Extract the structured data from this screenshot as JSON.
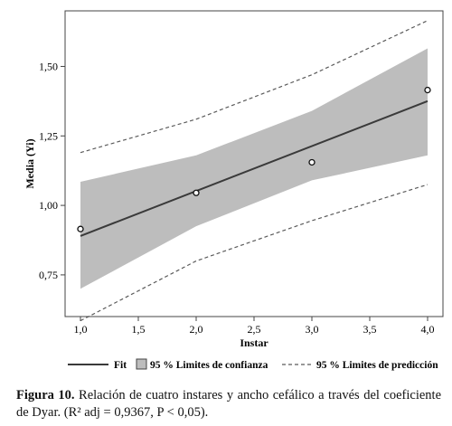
{
  "chart_data": {
    "type": "scatter",
    "title": "",
    "xlabel": "Instar",
    "ylabel": "Media (Yi)",
    "xlim": [
      1.0,
      4.0
    ],
    "ylim": [
      0.6,
      1.7
    ],
    "x_ticks": [
      "1,0",
      "1,5",
      "2,0",
      "2,5",
      "3,0",
      "3,5",
      "4,0"
    ],
    "y_ticks": [
      "0,75",
      "1,00",
      "1,25",
      "1,50"
    ],
    "x_tick_values": [
      1.0,
      1.5,
      2.0,
      2.5,
      3.0,
      3.5,
      4.0
    ],
    "y_tick_values": [
      0.75,
      1.0,
      1.25,
      1.5
    ],
    "grid": false,
    "legend_position": "bottom",
    "points": {
      "x": [
        1,
        2,
        3,
        4
      ],
      "y": [
        0.915,
        1.045,
        1.155,
        1.415
      ]
    },
    "fit": {
      "x": [
        1,
        4
      ],
      "y": [
        0.89,
        1.375
      ]
    },
    "confidence_band": {
      "x": [
        1,
        2,
        3,
        4
      ],
      "lower": [
        0.7,
        0.925,
        1.09,
        1.18
      ],
      "upper": [
        1.085,
        1.18,
        1.34,
        1.565
      ]
    },
    "prediction_limits": {
      "x": [
        1,
        2,
        3,
        4
      ],
      "lower": [
        0.585,
        0.8,
        0.945,
        1.075
      ],
      "upper": [
        1.19,
        1.31,
        1.47,
        1.665
      ]
    },
    "legend": {
      "fit": "Fit",
      "confidence": "95 % Limites de confianza",
      "prediction": "95 % Limites de predicción"
    },
    "colors": {
      "band": "#bdbdbd",
      "fit": "#3a3a3a",
      "prediction": "#5a5a5a",
      "axis": "#444444",
      "point_fill": "#ffffff"
    }
  },
  "caption": {
    "label": "Figura 10.",
    "text": "Relación de cuatro instares y ancho cefálico a través del coeficiente de Dyar. (R² adj = 0,9367, P < 0,05)."
  }
}
